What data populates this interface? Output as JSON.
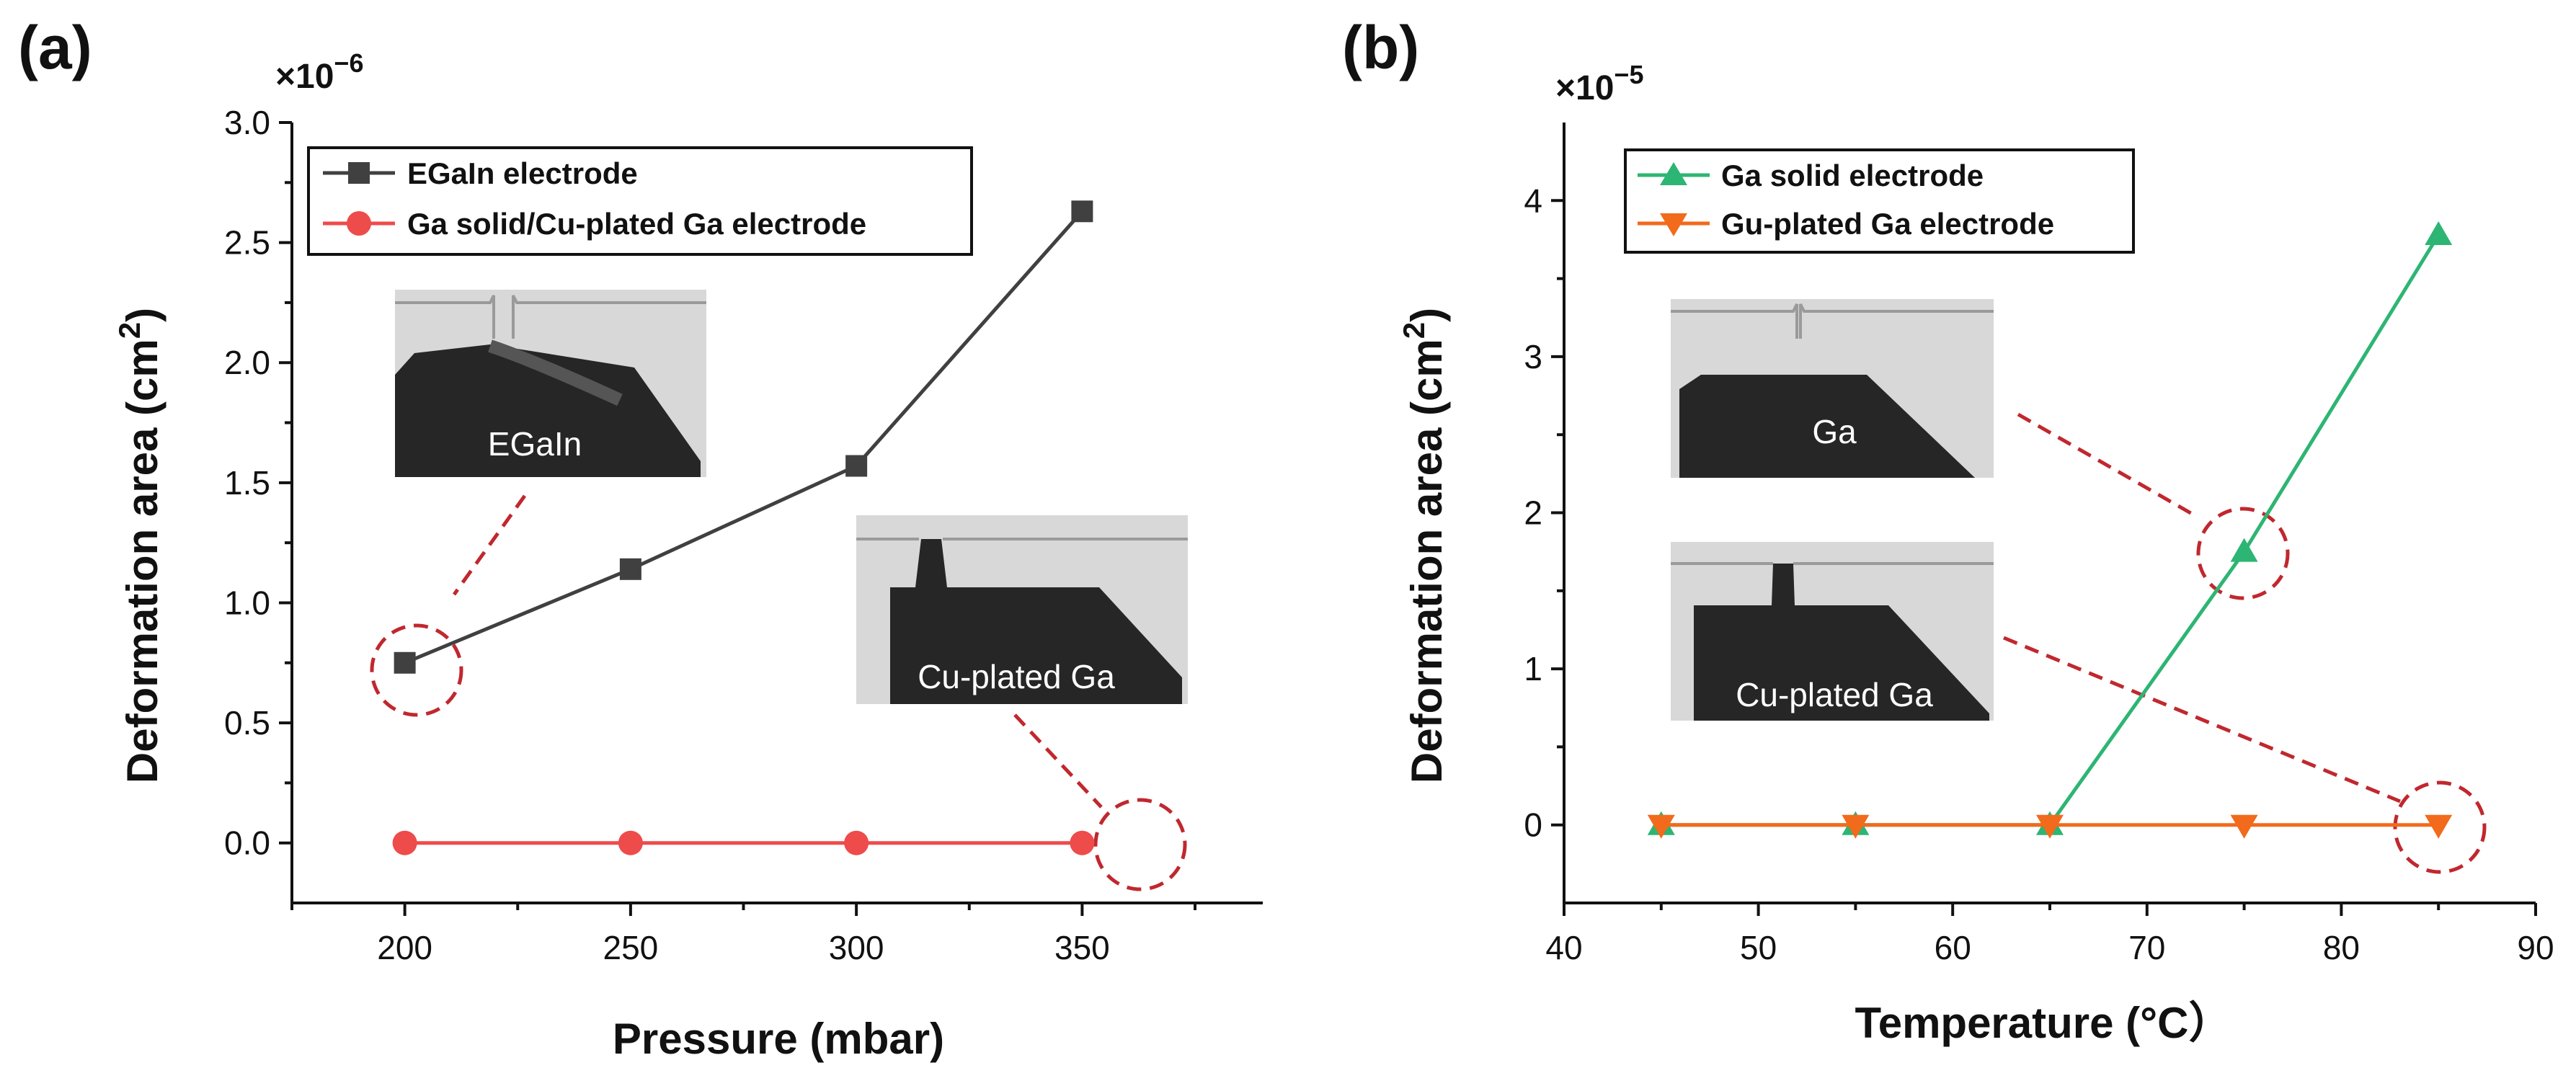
{
  "chart_data": [
    {
      "panel": "(a)",
      "type": "line",
      "xlabel": "Pressure (mbar)",
      "ylabel": "Deformation area (cm",
      "ylabel_sup": "2",
      "ylabel_end": ")",
      "exponent_label": "×10",
      "exponent_power": "−6",
      "x": [
        200,
        250,
        300,
        350
      ],
      "xlim": [
        175,
        390
      ],
      "ylim": [
        -0.25,
        3.0
      ],
      "xticks": [
        200,
        250,
        300,
        350
      ],
      "yticks": [
        0.0,
        0.5,
        1.0,
        1.5,
        2.0,
        2.5,
        3.0
      ],
      "xtick_labels": [
        "200",
        "250",
        "300",
        "350"
      ],
      "ytick_labels": [
        "0.0",
        "0.5",
        "1.0",
        "1.5",
        "2.0",
        "2.5",
        "3.0"
      ],
      "series": [
        {
          "name": "EGaIn electrode",
          "marker": "square",
          "color": "#404040",
          "values": [
            0.75,
            1.14,
            1.57,
            2.63
          ]
        },
        {
          "name": "Ga solid/Cu-plated Ga electrode",
          "marker": "circle",
          "color": "#EE4B4B",
          "values": [
            0.0,
            0.0,
            0.0,
            0.0
          ]
        }
      ],
      "insets": [
        {
          "caption": "EGaIn",
          "highlighted_point": {
            "series": 0,
            "x": 200
          }
        },
        {
          "caption": "Cu-plated Ga",
          "highlighted_point": {
            "series": 1,
            "x": 350
          }
        }
      ]
    },
    {
      "panel": "(b)",
      "type": "line",
      "xlabel": "Temperature (°C）",
      "ylabel": "Deformation area (cm",
      "ylabel_sup": "2",
      "ylabel_end": ")",
      "exponent_label": "×10",
      "exponent_power": "−5",
      "x": [
        45,
        55,
        65,
        75,
        85
      ],
      "xlim": [
        40,
        90
      ],
      "ylim": [
        -0.5,
        4.5
      ],
      "xticks": [
        40,
        50,
        60,
        70,
        80,
        90
      ],
      "yticks": [
        0,
        1,
        2,
        3,
        4
      ],
      "xtick_labels": [
        "40",
        "50",
        "60",
        "70",
        "80",
        "90"
      ],
      "ytick_labels": [
        "0",
        "1",
        "2",
        "3",
        "4"
      ],
      "series": [
        {
          "name": "Ga solid electrode",
          "marker": "triangle-up",
          "color": "#2DB573",
          "values": [
            0.0,
            0.0,
            0.0,
            1.75,
            3.78
          ]
        },
        {
          "name": "Gu-plated Ga electrode",
          "marker": "triangle-down",
          "color": "#F26A1B",
          "values": [
            0.0,
            0.0,
            0.0,
            0.0,
            0.0
          ]
        }
      ],
      "insets": [
        {
          "caption": "Ga",
          "highlighted_point": {
            "series": 0,
            "x": 75
          }
        },
        {
          "caption": "Cu-plated Ga",
          "highlighted_point": {
            "series": 1,
            "x": 85
          }
        }
      ]
    }
  ],
  "colors": {
    "axis": "#111111",
    "annotation_dash": "#C0282E",
    "inset_dark": "#262626",
    "inset_light": "#D8D8D8"
  }
}
